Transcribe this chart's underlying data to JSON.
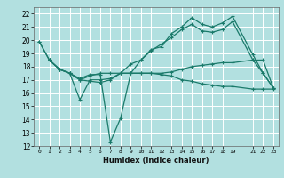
{
  "xlabel": "Humidex (Indice chaleur)",
  "ylabel": "",
  "background_color": "#b2e0e0",
  "grid_color": "#ffffff",
  "line_color": "#1a7a6a",
  "xlim": [
    -0.5,
    23.5
  ],
  "ylim": [
    12,
    22.5
  ],
  "xticks": [
    0,
    1,
    2,
    3,
    4,
    5,
    6,
    7,
    8,
    9,
    10,
    11,
    12,
    13,
    14,
    15,
    16,
    17,
    18,
    19,
    21,
    22,
    23
  ],
  "yticks": [
    12,
    13,
    14,
    15,
    16,
    17,
    18,
    19,
    20,
    21,
    22
  ],
  "series": [
    {
      "x": [
        0,
        1,
        2,
        3,
        4,
        5,
        6,
        7,
        8,
        9,
        10,
        11,
        12,
        13,
        14,
        15,
        16,
        17,
        18,
        19,
        21,
        22,
        23
      ],
      "y": [
        19.9,
        18.5,
        17.8,
        17.5,
        17.1,
        17.4,
        17.4,
        12.3,
        14.1,
        17.5,
        18.5,
        19.3,
        19.5,
        20.5,
        21.0,
        21.7,
        21.2,
        21.0,
        21.3,
        21.8,
        18.9,
        17.5,
        16.4
      ]
    },
    {
      "x": [
        0,
        1,
        2,
        3,
        4,
        5,
        6,
        7,
        8,
        9,
        10,
        11,
        12,
        13,
        14,
        15,
        16,
        17,
        18,
        19,
        21,
        22,
        23
      ],
      "y": [
        19.9,
        18.5,
        17.8,
        17.5,
        15.5,
        17.0,
        17.0,
        17.1,
        17.5,
        18.2,
        18.5,
        19.2,
        19.7,
        20.2,
        20.8,
        21.2,
        20.7,
        20.6,
        20.8,
        21.4,
        18.5,
        17.5,
        16.4
      ]
    },
    {
      "x": [
        1,
        2,
        3,
        4,
        5,
        6,
        7,
        8,
        9,
        10,
        11,
        12,
        13,
        14,
        15,
        16,
        17,
        18,
        19,
        21,
        22,
        23
      ],
      "y": [
        18.5,
        17.8,
        17.5,
        17.0,
        16.9,
        16.8,
        17.0,
        17.5,
        17.5,
        17.5,
        17.5,
        17.4,
        17.3,
        17.0,
        16.9,
        16.7,
        16.6,
        16.5,
        16.5,
        16.3,
        16.3,
        16.3
      ]
    },
    {
      "x": [
        1,
        2,
        3,
        4,
        5,
        6,
        7,
        8,
        9,
        10,
        11,
        12,
        13,
        14,
        15,
        16,
        17,
        18,
        19,
        21,
        22,
        23
      ],
      "y": [
        18.5,
        17.8,
        17.5,
        17.0,
        17.3,
        17.5,
        17.5,
        17.5,
        17.5,
        17.5,
        17.5,
        17.5,
        17.6,
        17.8,
        18.0,
        18.1,
        18.2,
        18.3,
        18.3,
        18.5,
        18.5,
        16.4
      ]
    }
  ]
}
